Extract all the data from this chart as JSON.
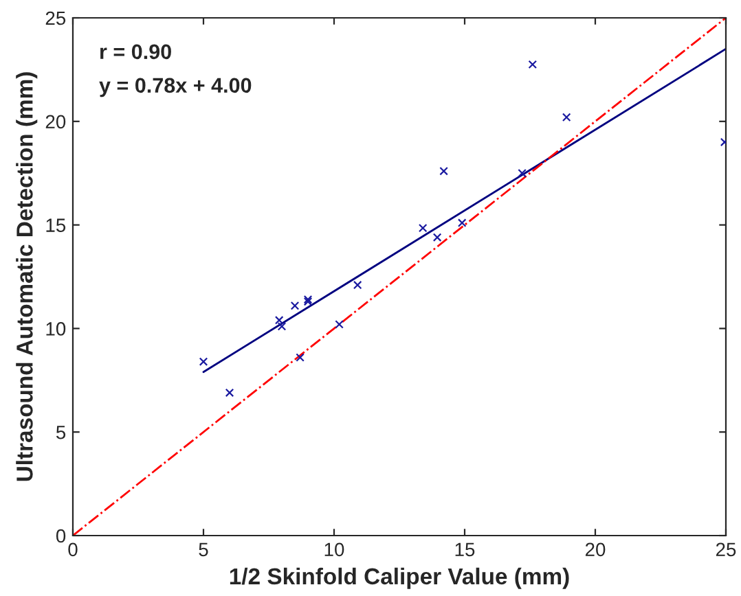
{
  "chart_data": {
    "type": "scatter",
    "xlabel": "1/2 Skinfold Caliper Value (mm)",
    "ylabel": "Ultrasound Automatic Detection (mm)",
    "series": [
      {
        "color": "#1a1aa0",
        "marker": "cross",
        "x": [
          5.0,
          6.0,
          7.9,
          8.0,
          8.5,
          8.7,
          9.0,
          9.0,
          10.2,
          10.9,
          13.4,
          13.95,
          14.2,
          14.9,
          17.2,
          17.6,
          18.9,
          24.95
        ],
        "values": [
          8.4,
          6.9,
          10.4,
          10.1,
          11.1,
          8.6,
          11.4,
          11.3,
          10.2,
          12.1,
          14.85,
          14.4,
          17.6,
          15.1,
          17.5,
          22.75,
          20.2,
          19.0
        ]
      },
      {
        "type": "line",
        "color": "#000080",
        "line_style": "solid",
        "marker": "none",
        "x": [
          5,
          25
        ],
        "values": [
          7.9,
          23.5
        ]
      },
      {
        "type": "line",
        "color": "#ff0000",
        "line_style": "dashed",
        "marker": "none",
        "x": [
          0,
          25
        ],
        "values": [
          0,
          25
        ]
      }
    ],
    "annotations": [
      "r = 0.90",
      "y = 0.78x + 4.00"
    ],
    "xlim": [
      0,
      25
    ],
    "ylim": [
      0,
      25
    ],
    "xticks": [
      0,
      5,
      10,
      15,
      20,
      25
    ],
    "yticks": [
      0,
      5,
      10,
      15,
      20,
      25
    ],
    "grid": false,
    "legend": false
  }
}
